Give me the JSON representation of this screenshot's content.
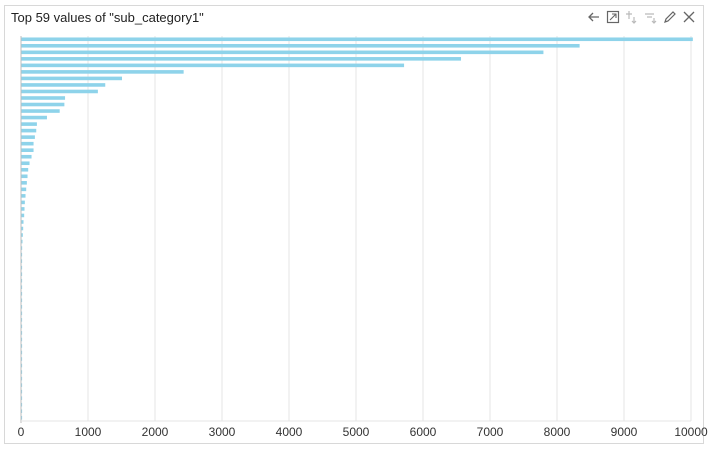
{
  "panel": {
    "title": "Top 59 values of \"sub_category1\"",
    "toolbar": [
      {
        "icon": "arrow-left-icon",
        "enabled": true
      },
      {
        "icon": "expand-icon",
        "enabled": true
      },
      {
        "icon": "pin-icon",
        "enabled": false
      },
      {
        "icon": "filter-icon",
        "enabled": false
      },
      {
        "icon": "pencil-icon",
        "enabled": true
      },
      {
        "icon": "close-icon",
        "enabled": true
      }
    ]
  },
  "chart_data": {
    "type": "bar",
    "orientation": "horizontal",
    "title": "",
    "xlabel": "",
    "ylabel": "",
    "xlim": [
      0,
      10000
    ],
    "x_ticks": [
      0,
      1000,
      2000,
      3000,
      4000,
      5000,
      6000,
      7000,
      8000,
      9000,
      10000
    ],
    "x_tick_labels": [
      "0",
      "1000",
      "2000",
      "3000",
      "4000",
      "5000",
      "6000",
      "7000",
      "8000",
      "9000",
      "10000"
    ],
    "grid": true,
    "bar_color": "#8ed3ea",
    "values": [
      10020,
      8330,
      7790,
      6560,
      5710,
      2420,
      1500,
      1250,
      1140,
      650,
      640,
      570,
      380,
      230,
      220,
      200,
      180,
      180,
      150,
      120,
      100,
      90,
      80,
      70,
      60,
      50,
      45,
      40,
      30,
      25,
      20,
      15,
      10,
      8,
      6,
      5,
      5,
      4,
      4,
      3,
      3,
      3,
      2,
      2,
      2,
      2,
      1,
      1,
      1,
      1,
      1,
      1,
      1,
      1,
      1,
      1,
      1,
      1,
      1
    ]
  }
}
